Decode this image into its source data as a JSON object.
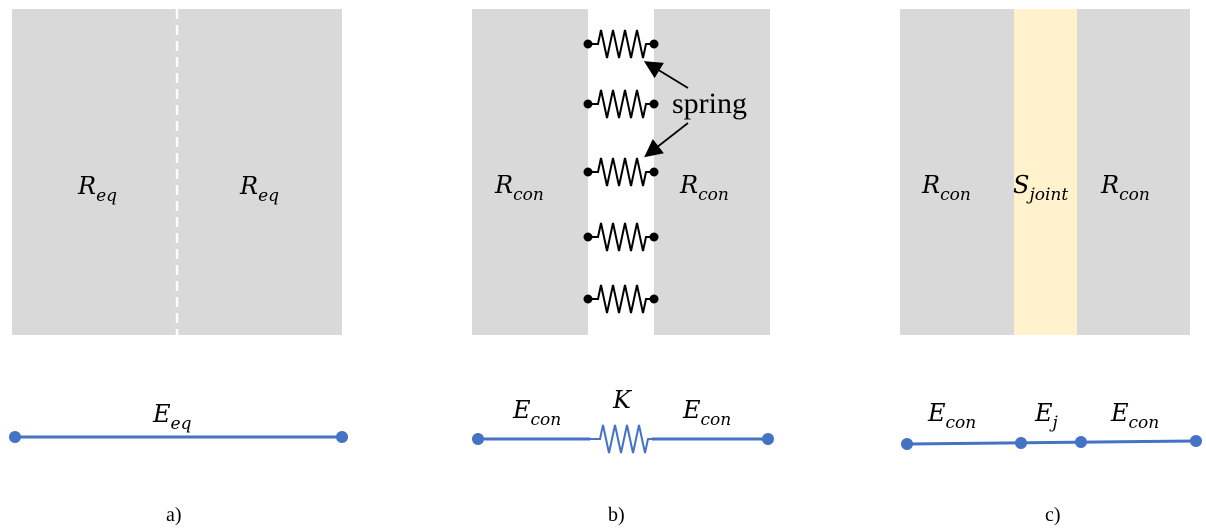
{
  "colors": {
    "block": "#d9d9d9",
    "joint": "#fff2cc",
    "line": "#4472c4",
    "black": "#000000"
  },
  "panel_a": {
    "left_label": {
      "main": "R",
      "sub": "eq"
    },
    "right_label": {
      "main": "R",
      "sub": "eq"
    },
    "line_label": {
      "main": "E",
      "sub": "eq"
    },
    "caption": "a)"
  },
  "panel_b": {
    "left_label": {
      "main": "R",
      "sub": "con"
    },
    "right_label": {
      "main": "R",
      "sub": "con"
    },
    "spring_annotation": "spring",
    "line_left_label": {
      "main": "E",
      "sub": "con"
    },
    "line_mid_label": {
      "main": "K"
    },
    "line_right_label": {
      "main": "E",
      "sub": "con"
    },
    "caption": "b)"
  },
  "panel_c": {
    "left_label": {
      "main": "R",
      "sub": "con"
    },
    "joint_label": {
      "main": "S",
      "sub": "joint"
    },
    "right_label": {
      "main": "R",
      "sub": "con"
    },
    "line_left_label": {
      "main": "E",
      "sub": "con"
    },
    "line_mid_label": {
      "main": "E",
      "sub": "j"
    },
    "line_right_label": {
      "main": "E",
      "sub": "con"
    },
    "caption": "c)"
  }
}
